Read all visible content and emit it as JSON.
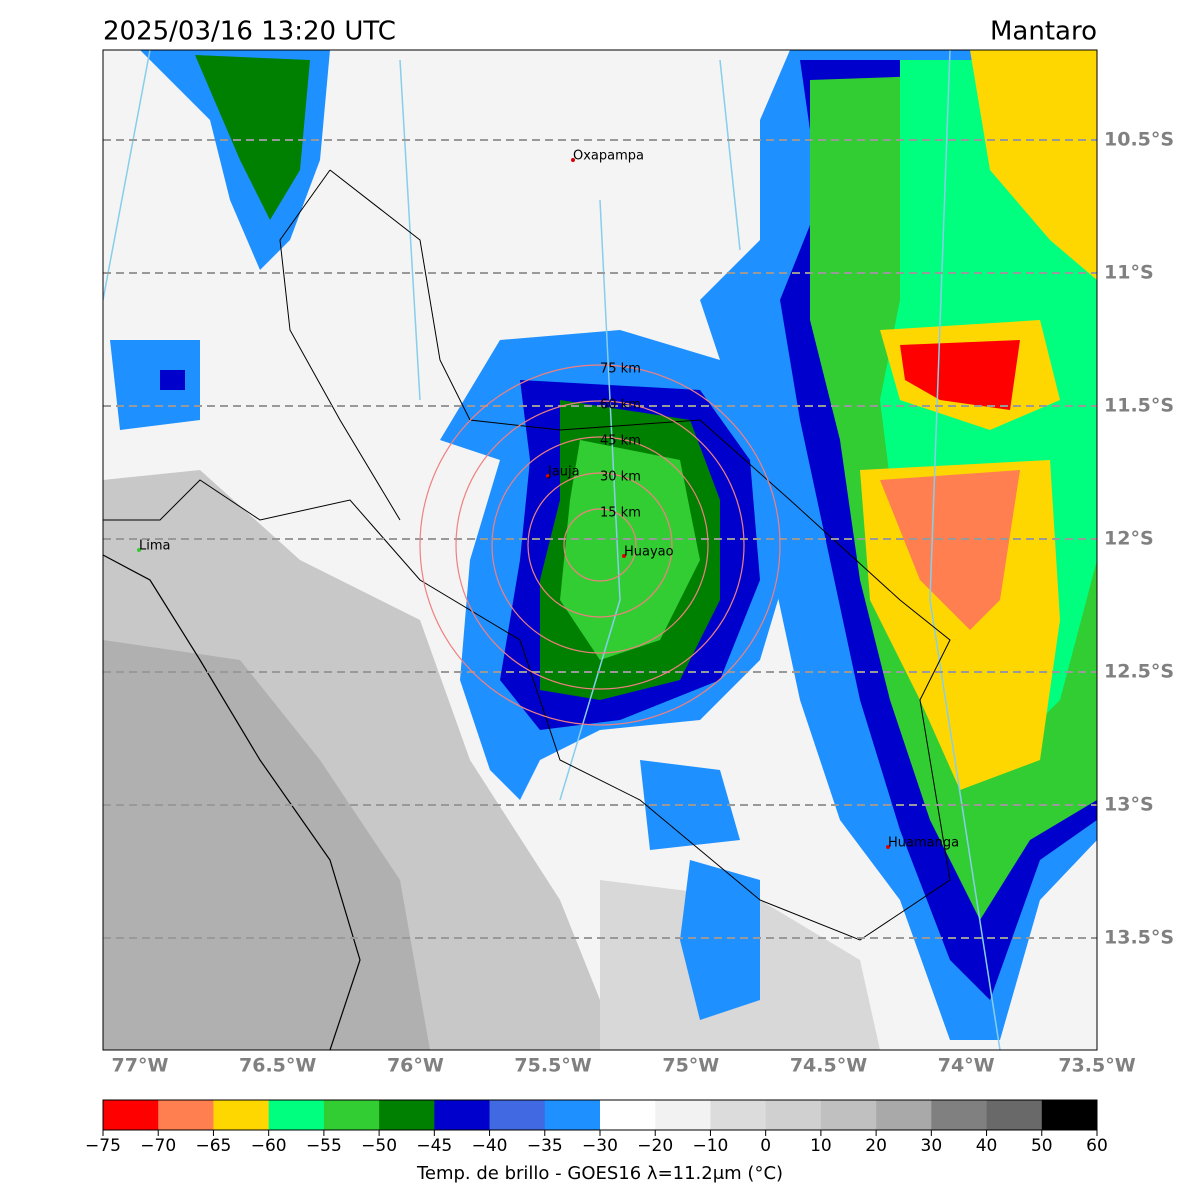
{
  "header": {
    "title": "2025/03/16 13:20 UTC",
    "region": "Mantaro"
  },
  "map": {
    "cities": [
      "Oxapampa",
      "Jauja",
      "Huayao",
      "Lima",
      "Huamanga"
    ],
    "rings": [
      "75 km",
      "60 km",
      "45 km",
      "30 km",
      "15 km"
    ],
    "lat_labels": [
      "10.5°S",
      "11°S",
      "11.5°S",
      "12°S",
      "12.5°S",
      "13°S",
      "13.5°S"
    ],
    "lon_labels": [
      "77°W",
      "76.5°W",
      "76°W",
      "75.5°W",
      "75°W",
      "74.5°W",
      "74°W",
      "73.5°W"
    ]
  },
  "colorbar": {
    "ticks": [
      "−75",
      "−70",
      "−65",
      "−60",
      "−55",
      "−50",
      "−45",
      "−40",
      "−35",
      "−30",
      "−20",
      "−10",
      "0",
      "10",
      "20",
      "30",
      "40",
      "50",
      "60"
    ],
    "colors": [
      "#ff0000",
      "#ff7f50",
      "#ffd700",
      "#00ff7f",
      "#32cd32",
      "#008000",
      "#0000cd",
      "#4169e1",
      "#1e90ff",
      "#ffffff",
      "#f2f2f2",
      "#dcdcdc",
      "#d0d0d0",
      "#c0c0c0",
      "#a9a9a9",
      "#808080",
      "#696969",
      "#000000"
    ],
    "label": "Temp. de brillo - GOES16 λ=11.2μm (°C)"
  }
}
